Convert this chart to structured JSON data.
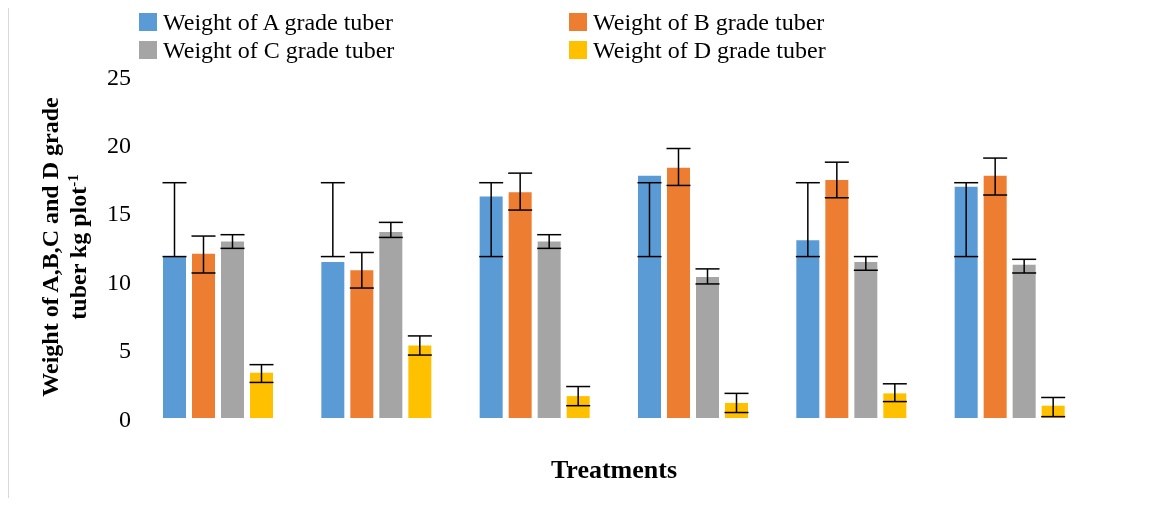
{
  "chart_data": {
    "type": "bar",
    "xlabel": "Treatments",
    "ylabel": "Weight of A,B,C and D grade tuber kg  plot$^{-1}$",
    "categories": [
      null,
      null,
      null,
      null,
      null,
      null
    ],
    "series": [
      {
        "name": "Weight of A grade tuber",
        "color": "#5b9bd5",
        "values": [
          11.8,
          11.4,
          16.2,
          17.7,
          13.0,
          16.9
        ],
        "errors": [
          [
            11.8,
            17.2
          ],
          [
            11.8,
            17.2
          ],
          [
            11.8,
            17.2
          ],
          [
            11.8,
            17.2
          ],
          [
            11.8,
            17.2
          ],
          [
            11.8,
            17.2
          ]
        ]
      },
      {
        "name": "Weight of B grade tuber",
        "color": "#ed7d31",
        "values": [
          12.0,
          10.8,
          16.5,
          18.3,
          17.4,
          17.7
        ],
        "errors": [
          [
            10.6,
            13.3
          ],
          [
            9.5,
            12.1
          ],
          [
            15.2,
            17.9
          ],
          [
            17.0,
            19.7
          ],
          [
            16.1,
            18.7
          ],
          [
            16.3,
            19.0
          ]
        ]
      },
      {
        "name": "Weight of C grade tuber",
        "color": "#a5a5a5",
        "values": [
          12.9,
          13.6,
          12.9,
          10.3,
          11.4,
          11.2
        ],
        "errors": [
          [
            12.4,
            13.4
          ],
          [
            13.2,
            14.3
          ],
          [
            12.4,
            13.4
          ],
          [
            9.8,
            10.9
          ],
          [
            10.8,
            11.8
          ],
          [
            10.6,
            11.6
          ]
        ]
      },
      {
        "name": "Weight of D grade tuber",
        "color": "#ffc000",
        "values": [
          3.3,
          5.3,
          1.6,
          1.1,
          1.8,
          0.9
        ],
        "errors": [
          [
            2.6,
            3.9
          ],
          [
            4.6,
            6.0
          ],
          [
            0.9,
            2.3
          ],
          [
            0.4,
            1.8
          ],
          [
            1.2,
            2.5
          ],
          [
            0.1,
            1.5
          ]
        ]
      }
    ],
    "ylim": [
      0,
      25
    ],
    "yticks": [
      0,
      5,
      10,
      15,
      20,
      25
    ],
    "grid": false,
    "legend": "top"
  }
}
